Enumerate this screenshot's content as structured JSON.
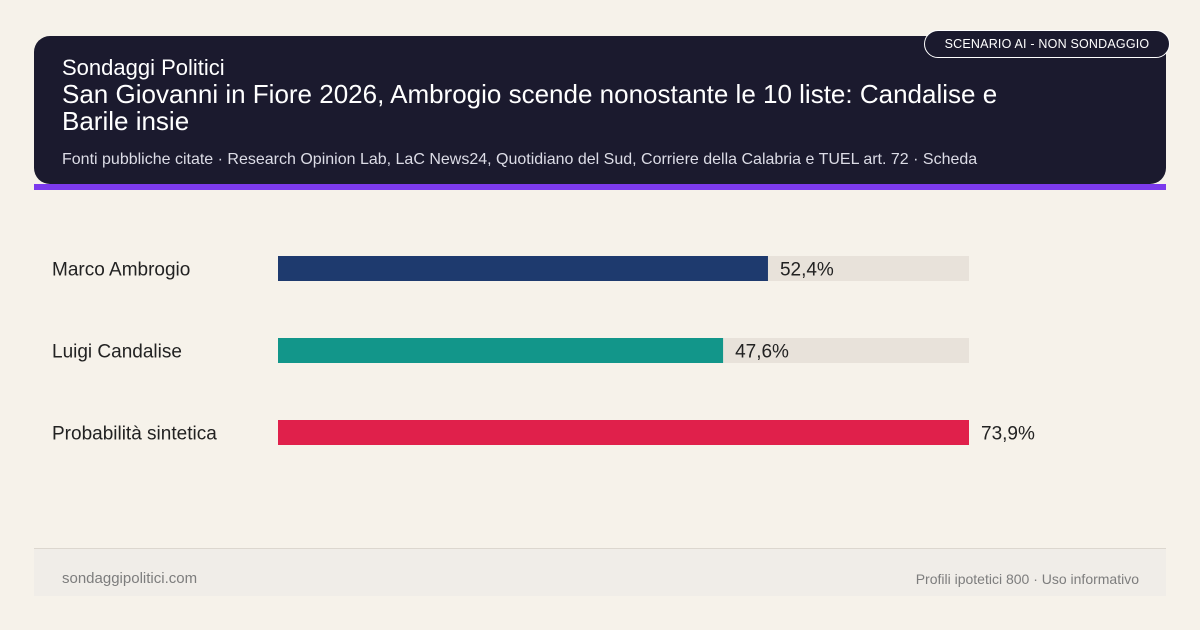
{
  "header": {
    "brand": "Sondaggi Politici",
    "headline": "San Giovanni in Fiore 2026, Ambrogio scende nonostante le 10 liste: Candalise e Barile insie",
    "sources": "Fonti pubbliche citate · Research Opinion Lab, LaC News24, Quotidiano del Sud, Corriere della Calabria e TUEL art. 72 · Scheda",
    "badge": "SCENARIO AI - NON SONDAGGIO"
  },
  "colors": {
    "header_bg": "#1b1a2e",
    "accent": "#7c3aed",
    "track": "#e8e2da",
    "background": "#f6f2ea"
  },
  "chart_data": {
    "type": "bar",
    "orientation": "horizontal",
    "categories": [
      "Marco Ambrogio",
      "Luigi Candalise",
      "Probabilità sintetica"
    ],
    "values": [
      52.4,
      47.6,
      73.9
    ],
    "value_labels": [
      "52,4%",
      "47,6%",
      "73,9%"
    ],
    "colors": [
      "#1e3a6e",
      "#12968a",
      "#e0204b"
    ],
    "xlim": [
      0,
      73.9
    ],
    "grid": false,
    "title": "",
    "xlabel": "",
    "ylabel": ""
  },
  "footer": {
    "site": "sondaggipolitici.com",
    "note": "Profili ipotetici 800 · Uso informativo"
  }
}
